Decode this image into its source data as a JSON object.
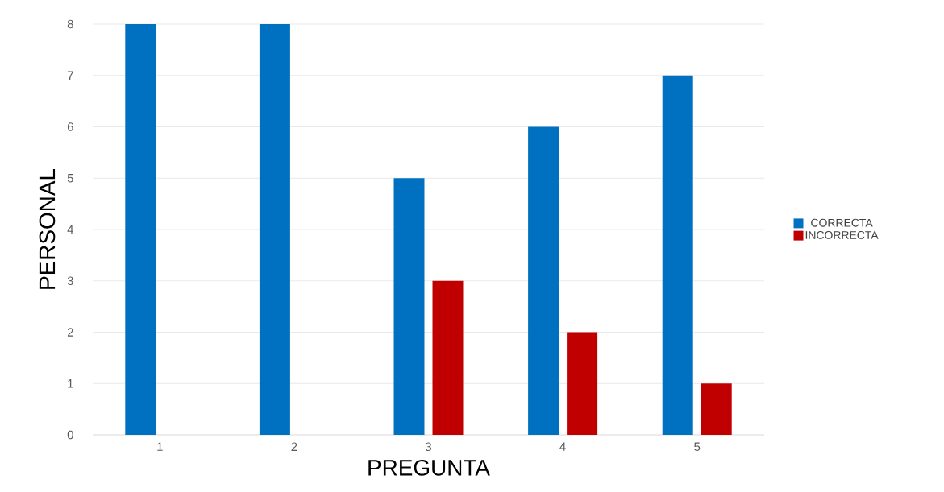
{
  "chart_data": {
    "type": "bar",
    "xlabel": "PREGUNTA",
    "ylabel": "PERSONAL",
    "categories": [
      "1",
      "2",
      "3",
      "4",
      "5"
    ],
    "series": [
      {
        "name": "CORRECTA",
        "color": "#0070c0",
        "values": [
          8,
          8,
          5,
          6,
          7
        ]
      },
      {
        "name": "INCORRECTA",
        "color": "#c00000",
        "values": [
          0,
          0,
          3,
          2,
          1
        ]
      }
    ],
    "ylim": [
      0,
      8
    ],
    "yticks": [
      0,
      1,
      2,
      3,
      4,
      5,
      6,
      7,
      8
    ],
    "grid": "y",
    "legend": "right"
  }
}
